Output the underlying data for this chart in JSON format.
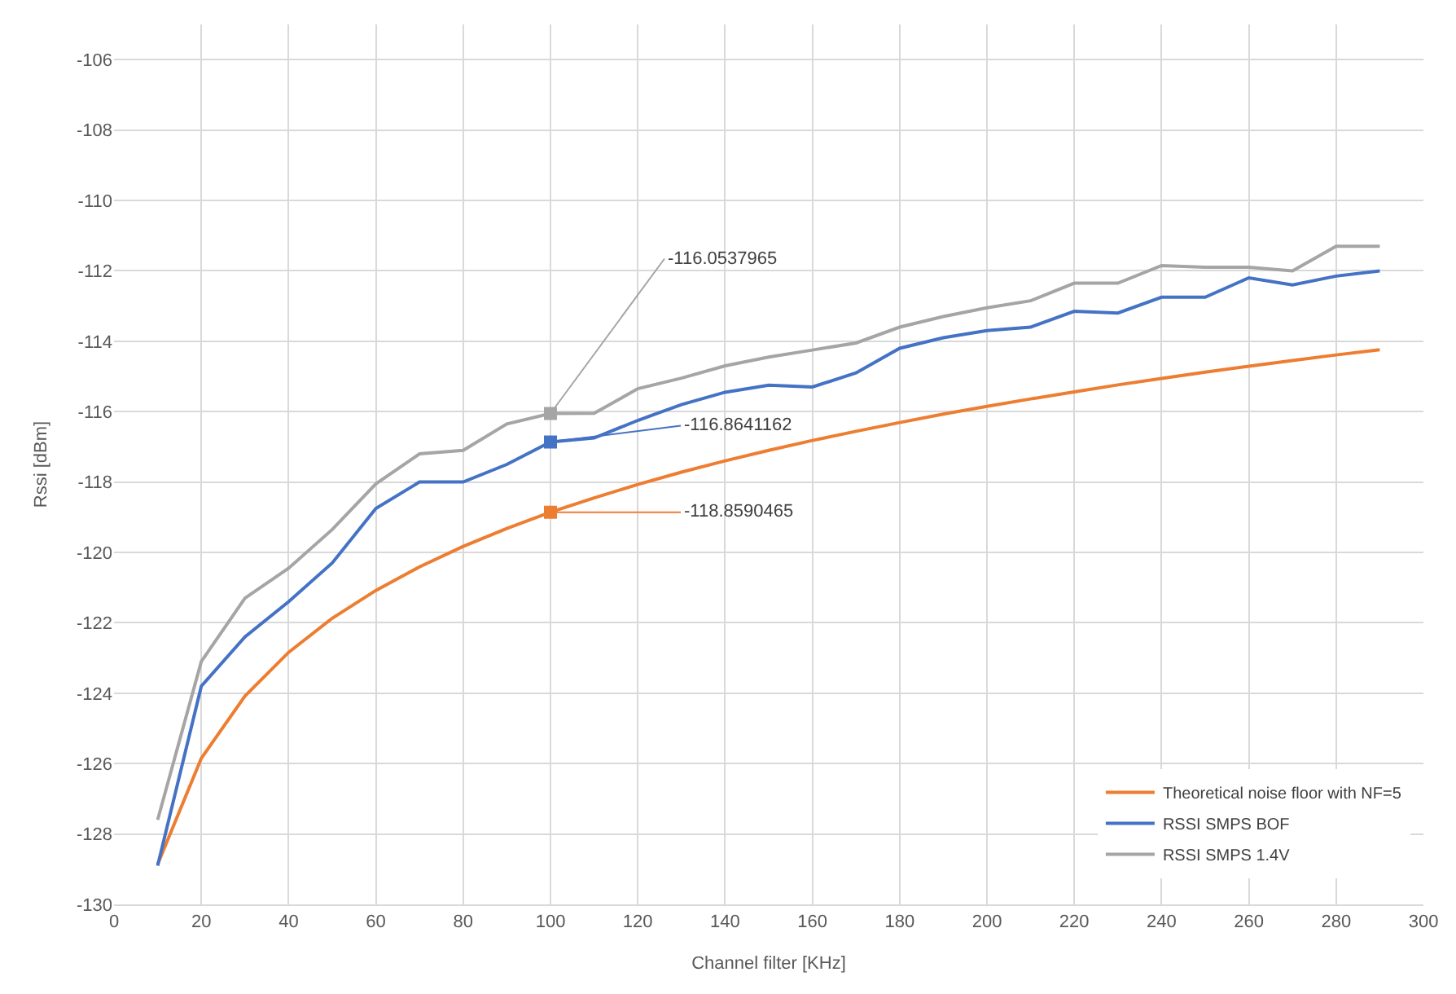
{
  "chart_data": {
    "type": "line",
    "xlabel": "Channel filter [KHz]",
    "ylabel": "Rssi [dBm]",
    "x": [
      10,
      20,
      30,
      40,
      50,
      60,
      70,
      80,
      90,
      100,
      110,
      120,
      130,
      140,
      150,
      160,
      170,
      180,
      190,
      200,
      210,
      220,
      230,
      240,
      250,
      260,
      270,
      280,
      290
    ],
    "series": [
      {
        "name": "Theoretical noise floor with NF=5",
        "color": "#ed7d31",
        "values": [
          -128.86,
          -125.85,
          -124.08,
          -122.84,
          -121.87,
          -121.08,
          -120.41,
          -119.83,
          -119.32,
          -118.8590465,
          -118.45,
          -118.07,
          -117.72,
          -117.4,
          -117.1,
          -116.82,
          -116.56,
          -116.31,
          -116.07,
          -115.85,
          -115.64,
          -115.44,
          -115.24,
          -115.06,
          -114.88,
          -114.71,
          -114.55,
          -114.39,
          -114.24
        ],
        "value_labels": [
          null,
          null,
          null,
          null,
          null,
          null,
          null,
          null,
          null,
          "-118.8590465",
          null,
          null,
          null,
          null,
          null,
          null,
          null,
          null,
          null,
          null,
          null,
          null,
          null,
          null,
          null,
          null,
          null,
          null,
          null
        ]
      },
      {
        "name": "RSSI SMPS BOF",
        "color": "#4472c4",
        "values": [
          -128.9,
          -123.8,
          -122.4,
          -121.4,
          -120.3,
          -118.75,
          -118.0,
          -118.0,
          -117.5,
          -116.8641162,
          -116.75,
          -116.25,
          -115.8,
          -115.45,
          -115.25,
          -115.3,
          -114.9,
          -114.2,
          -113.9,
          -113.7,
          -113.6,
          -113.15,
          -113.2,
          -112.75,
          -112.75,
          -112.2,
          -112.4,
          -112.15,
          -112.0
        ],
        "value_labels": [
          null,
          null,
          null,
          null,
          null,
          null,
          null,
          null,
          null,
          "-116.8641162",
          null,
          null,
          null,
          null,
          null,
          null,
          null,
          null,
          null,
          null,
          null,
          null,
          null,
          null,
          null,
          null,
          null,
          null,
          null
        ]
      },
      {
        "name": "RSSI SMPS 1.4V",
        "color": "#a5a5a5",
        "values": [
          -127.6,
          -123.1,
          -121.3,
          -120.45,
          -119.35,
          -118.05,
          -117.2,
          -117.1,
          -116.35,
          -116.0537965,
          -116.05,
          -115.35,
          -115.05,
          -114.7,
          -114.45,
          -114.25,
          -114.05,
          -113.6,
          -113.3,
          -113.05,
          -112.85,
          -112.35,
          -112.35,
          -111.85,
          -111.9,
          -111.9,
          -112.0,
          -111.3,
          -111.3
        ],
        "value_labels": [
          null,
          null,
          null,
          null,
          null,
          null,
          null,
          null,
          null,
          "-116.0537965",
          null,
          null,
          null,
          null,
          null,
          null,
          null,
          null,
          null,
          null,
          null,
          null,
          null,
          null,
          null,
          null,
          null,
          null,
          null
        ]
      }
    ],
    "xlim": [
      0,
      300
    ],
    "xticks": [
      0,
      20,
      40,
      60,
      80,
      100,
      120,
      140,
      160,
      180,
      200,
      220,
      240,
      260,
      280,
      300
    ],
    "ylim": [
      -130,
      -105
    ],
    "yticks": [
      -130,
      -128,
      -126,
      -124,
      -122,
      -120,
      -118,
      -116,
      -114,
      -112,
      -110,
      -108,
      -106
    ],
    "grid": true,
    "legend": "bottom right",
    "marker": "none",
    "line_style": "solid"
  }
}
